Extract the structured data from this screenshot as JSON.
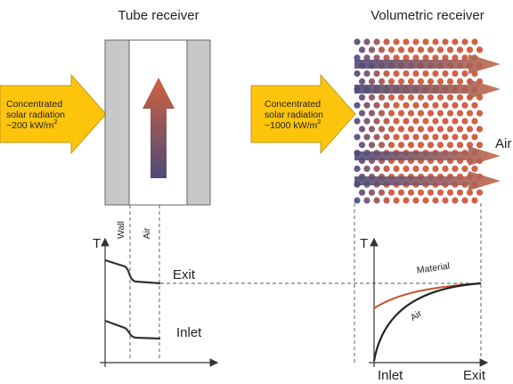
{
  "titles": {
    "tube": "Tube receiver",
    "volumetric": "Volumetric receiver"
  },
  "left_arrow": {
    "lines": [
      "Concentrated",
      "solar radiation",
      "~200 kW/m"
    ],
    "sup": "2"
  },
  "right_arrow": {
    "lines": [
      "Concentrated",
      "solar radiation",
      "~1000 kW/m"
    ],
    "sup": "2"
  },
  "air_label": "Air",
  "tube_plot": {
    "y_axis": "T",
    "wall": "Wall",
    "air": "Air",
    "exit": "Exit",
    "inlet": "Inlet"
  },
  "vol_plot": {
    "y_axis": "T",
    "material": "Material",
    "air": "Air",
    "inlet": "Inlet",
    "exit": "Exit"
  }
}
